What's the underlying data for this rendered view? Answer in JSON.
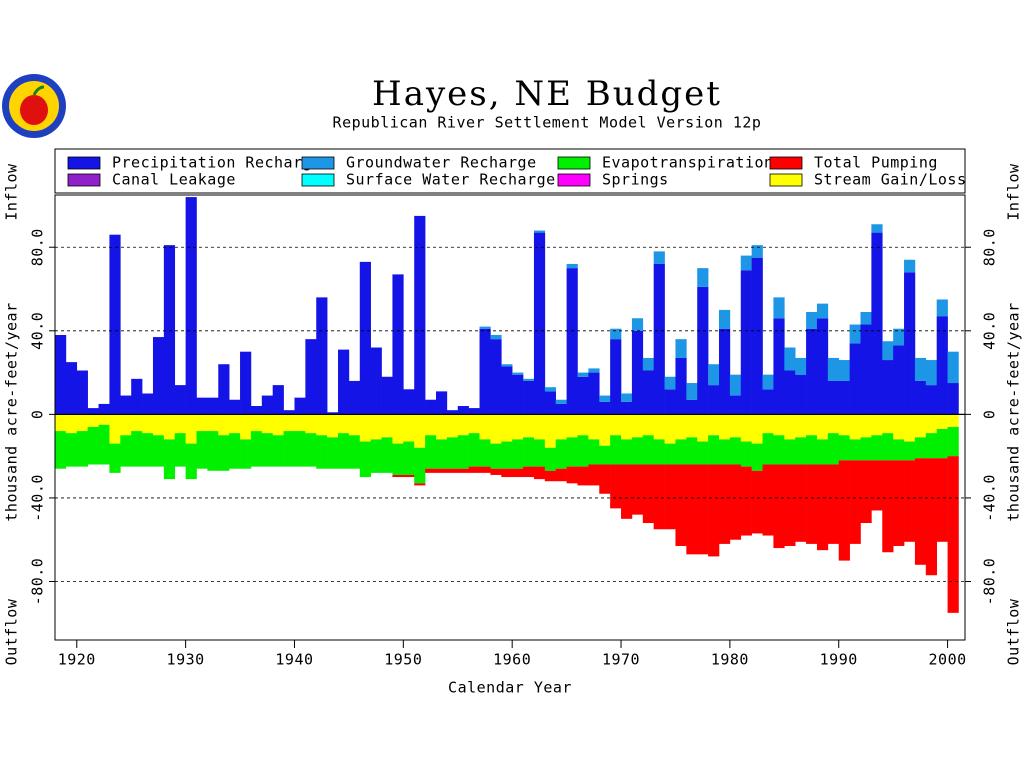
{
  "chart_data": {
    "type": "stacked_bar",
    "title": "Hayes, NE Budget",
    "subtitle": "Republican River Settlement Model Version 12p",
    "axis_labels": {
      "x": "Calendar Year",
      "y": "thousand acre-feet/year",
      "inflow": "Inflow",
      "outflow": "Outflow"
    },
    "x": [
      1918,
      1919,
      1920,
      1921,
      1922,
      1923,
      1924,
      1925,
      1926,
      1927,
      1928,
      1929,
      1930,
      1931,
      1932,
      1933,
      1934,
      1935,
      1936,
      1937,
      1938,
      1939,
      1940,
      1941,
      1942,
      1943,
      1944,
      1945,
      1946,
      1947,
      1948,
      1949,
      1950,
      1951,
      1952,
      1953,
      1954,
      1955,
      1956,
      1957,
      1958,
      1959,
      1960,
      1961,
      1962,
      1963,
      1964,
      1965,
      1966,
      1967,
      1968,
      1969,
      1970,
      1971,
      1972,
      1973,
      1974,
      1975,
      1976,
      1977,
      1978,
      1979,
      1980,
      1981,
      1982,
      1983,
      1984,
      1985,
      1986,
      1987,
      1988,
      1989,
      1990,
      1991,
      1992,
      1993,
      1994,
      1995,
      1996,
      1997,
      1998,
      1999,
      2000
    ],
    "series": [
      {
        "name": "Precipitation Recharge",
        "color": "#1414e6",
        "values": [
          38,
          25,
          21,
          3,
          5,
          86,
          9,
          17,
          10,
          37,
          81,
          14,
          104,
          8,
          8,
          24,
          7,
          30,
          4,
          9,
          14,
          2,
          8,
          36,
          56,
          1,
          31,
          16,
          73,
          32,
          18,
          67,
          12,
          95,
          7,
          11,
          2,
          4,
          3,
          41,
          36,
          23,
          19,
          16,
          87,
          11,
          5,
          70,
          18,
          20,
          6,
          36,
          6,
          40,
          21,
          72,
          12,
          27,
          7,
          61,
          14,
          41,
          9,
          69,
          75,
          12,
          46,
          21,
          19,
          41,
          46,
          16,
          16,
          34,
          43,
          87,
          26,
          33,
          68,
          16,
          14,
          47,
          15
        ]
      },
      {
        "name": "Canal Leakage",
        "color": "#9020c8",
        "values": [
          0,
          0,
          0,
          0,
          0,
          0,
          0,
          0,
          0,
          0,
          0,
          0,
          0,
          0,
          0,
          0,
          0,
          0,
          0,
          0,
          0,
          0,
          0,
          0,
          0,
          0,
          0,
          0,
          0,
          0,
          0,
          0,
          0,
          0,
          0,
          0,
          0,
          0,
          0,
          0,
          0,
          0,
          0,
          0,
          0,
          0,
          0,
          0,
          0,
          0,
          0,
          0,
          0,
          0,
          0,
          0,
          0,
          0,
          0,
          0,
          0,
          0,
          0,
          0,
          0,
          0,
          0,
          0,
          0,
          0,
          0,
          0,
          0,
          0,
          0,
          0,
          0,
          0,
          0,
          0,
          0,
          0,
          0
        ]
      },
      {
        "name": "Groundwater Recharge",
        "color": "#1e96e6",
        "values": [
          0,
          0,
          0,
          0,
          0,
          0,
          0,
          0,
          0,
          0,
          0,
          0,
          0,
          0,
          0,
          0,
          0,
          0,
          0,
          0,
          0,
          0,
          0,
          0,
          0,
          0,
          0,
          0,
          0,
          0,
          0,
          0,
          0,
          0,
          0,
          0,
          0,
          0,
          0,
          1,
          2,
          1,
          1,
          1,
          1,
          2,
          2,
          2,
          2,
          2,
          3,
          5,
          4,
          6,
          6,
          6,
          6,
          9,
          8,
          9,
          10,
          9,
          10,
          7,
          6,
          7,
          10,
          11,
          8,
          8,
          7,
          11,
          10,
          9,
          6,
          4,
          9,
          8,
          6,
          11,
          12,
          8,
          15
        ]
      },
      {
        "name": "Surface Water Recharge",
        "color": "#00ffff",
        "values": [
          0,
          0,
          0,
          0,
          0,
          0,
          0,
          0,
          0,
          0,
          0,
          0,
          0,
          0,
          0,
          0,
          0,
          0,
          0,
          0,
          0,
          0,
          0,
          0,
          0,
          0,
          0,
          0,
          0,
          0,
          0,
          0,
          0,
          0,
          0,
          0,
          0,
          0,
          0,
          0,
          0,
          0,
          0,
          0,
          0,
          0,
          0,
          0,
          0,
          0,
          0,
          0,
          0,
          0,
          0,
          0,
          0,
          0,
          0,
          0,
          0,
          0,
          0,
          0,
          0,
          0,
          0,
          0,
          0,
          0,
          0,
          0,
          0,
          0,
          0,
          0,
          0,
          0,
          0,
          0,
          0,
          0,
          0
        ]
      },
      {
        "name": "Evapotranspiration",
        "color": "#00f000",
        "values": [
          -18,
          -16,
          -17,
          -18,
          -19,
          -14,
          -15,
          -17,
          -16,
          -15,
          -19,
          -16,
          -17,
          -18,
          -19,
          -17,
          -17,
          -14,
          -17,
          -16,
          -15,
          -17,
          -17,
          -16,
          -16,
          -15,
          -17,
          -16,
          -17,
          -16,
          -17,
          -15,
          -16,
          -17,
          -16,
          -14,
          -15,
          -16,
          -16,
          -13,
          -12,
          -13,
          -14,
          -14,
          -13,
          -11,
          -14,
          -14,
          -15,
          -12,
          -9,
          -14,
          -12,
          -13,
          -14,
          -12,
          -10,
          -12,
          -13,
          -11,
          -14,
          -12,
          -13,
          -12,
          -13,
          -15,
          -14,
          -12,
          -13,
          -14,
          -12,
          -15,
          -12,
          -10,
          -11,
          -12,
          -13,
          -10,
          -9,
          -10,
          -12,
          -14,
          -14
        ]
      },
      {
        "name": "Springs",
        "color": "#ff00ff",
        "values": [
          0,
          0,
          0,
          0,
          0,
          0,
          0,
          0,
          0,
          0,
          0,
          0,
          0,
          0,
          0,
          0,
          0,
          0,
          0,
          0,
          0,
          0,
          0,
          0,
          0,
          0,
          0,
          0,
          0,
          0,
          0,
          0,
          0,
          0,
          0,
          0,
          0,
          0,
          0,
          0,
          0,
          0,
          0,
          0,
          0,
          0,
          0,
          0,
          0,
          0,
          0,
          0,
          0,
          0,
          0,
          0,
          0,
          0,
          0,
          0,
          0,
          0,
          0,
          0,
          0,
          0,
          0,
          0,
          0,
          0,
          0,
          0,
          0,
          0,
          0,
          0,
          0,
          0,
          0,
          0,
          0,
          0,
          0
        ]
      },
      {
        "name": "Total Pumping",
        "color": "#ff0000",
        "values": [
          0,
          0,
          0,
          0,
          0,
          0,
          0,
          0,
          0,
          0,
          0,
          0,
          0,
          0,
          0,
          0,
          0,
          0,
          0,
          0,
          0,
          0,
          0,
          0,
          0,
          0,
          0,
          0,
          0,
          0,
          0,
          -1,
          -1,
          -1,
          -2,
          -2,
          -2,
          -2,
          -3,
          -3,
          -3,
          -4,
          -4,
          -5,
          -6,
          -5,
          -6,
          -8,
          -9,
          -10,
          -14,
          -21,
          -26,
          -24,
          -28,
          -31,
          -31,
          -39,
          -43,
          -43,
          -44,
          -38,
          -36,
          -33,
          -30,
          -34,
          -40,
          -39,
          -37,
          -38,
          -41,
          -38,
          -48,
          -40,
          -30,
          -24,
          -44,
          -41,
          -39,
          -51,
          -56,
          -40,
          -75
        ]
      },
      {
        "name": "Stream Gain/Loss",
        "color": "#ffff00",
        "values": [
          -8,
          -9,
          -8,
          -6,
          -5,
          -14,
          -10,
          -8,
          -9,
          -10,
          -12,
          -9,
          -14,
          -8,
          -8,
          -10,
          -9,
          -12,
          -8,
          -9,
          -10,
          -8,
          -8,
          -9,
          -10,
          -11,
          -9,
          -10,
          -13,
          -12,
          -11,
          -14,
          -13,
          -16,
          -10,
          -12,
          -11,
          -10,
          -9,
          -12,
          -14,
          -13,
          -12,
          -11,
          -12,
          -16,
          -12,
          -11,
          -10,
          -12,
          -15,
          -10,
          -12,
          -11,
          -10,
          -12,
          -14,
          -12,
          -11,
          -13,
          -10,
          -12,
          -11,
          -13,
          -14,
          -9,
          -10,
          -12,
          -11,
          -10,
          -12,
          -9,
          -10,
          -12,
          -11,
          -10,
          -9,
          -12,
          -13,
          -11,
          -9,
          -7,
          -6
        ]
      }
    ],
    "xlim": [
      1918,
      2001.6
    ],
    "xticks": [
      1920,
      1930,
      1940,
      1950,
      1960,
      1970,
      1980,
      1990,
      2000
    ],
    "ylim": [
      -108,
      105
    ],
    "yticks": [
      {
        "value": -80,
        "label": "-80.0"
      },
      {
        "value": -40,
        "label": "-40.0"
      },
      0,
      {
        "value": 40,
        "label": "40.0"
      },
      {
        "value": 80,
        "label": "80.0"
      }
    ],
    "grid": true
  }
}
